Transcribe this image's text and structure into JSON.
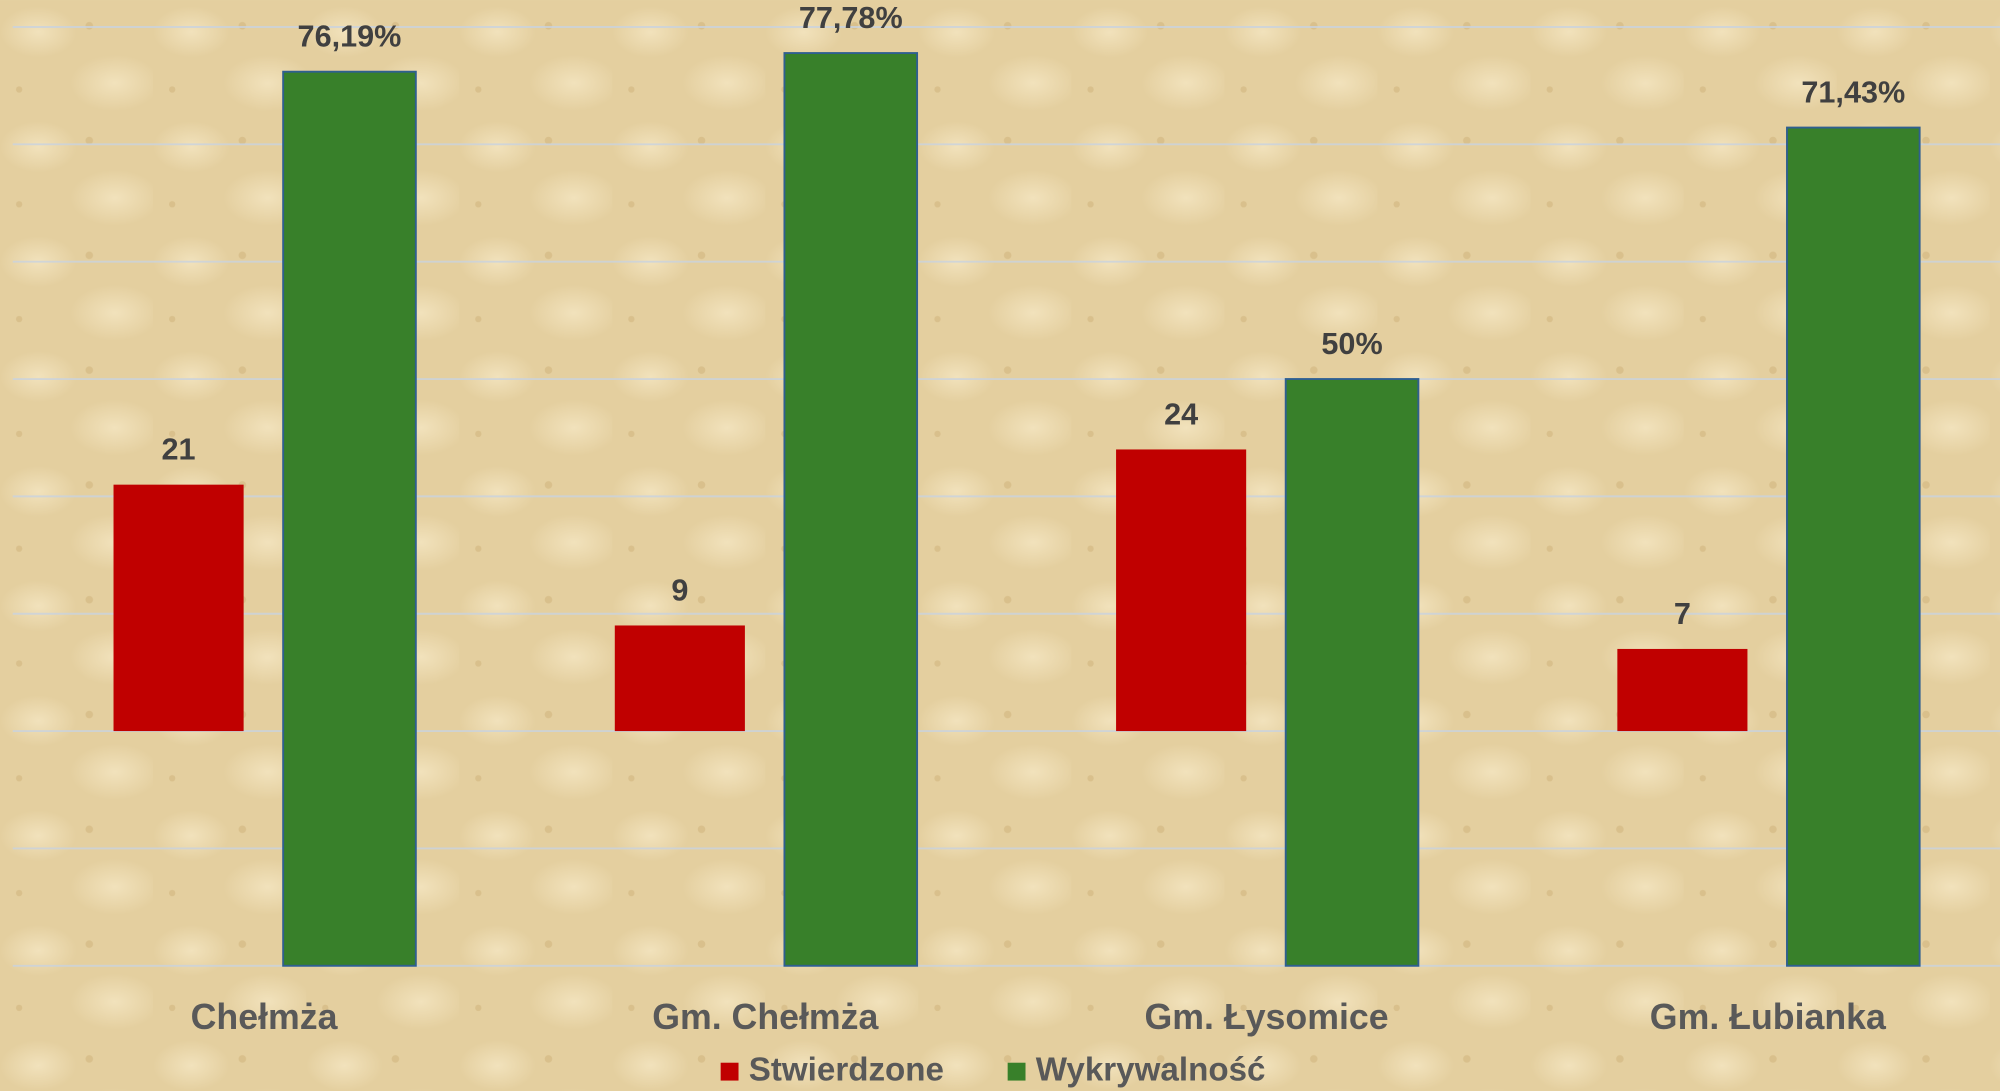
{
  "chart_data": {
    "type": "bar",
    "categories": [
      "Chełmża",
      "Gm. Chełmża",
      "Gm. Łysomice",
      "Gm. Łubianka"
    ],
    "series": [
      {
        "name": "Stwierdzone",
        "color": "#c00000",
        "axis": "y2",
        "values": [
          21,
          9,
          24,
          7
        ]
      },
      {
        "name": "Wykrywalność",
        "color": "#38802a",
        "values": [
          76.19,
          77.78,
          50,
          71.43
        ],
        "value_labels": [
          "76,19%",
          "77,78%",
          "50%",
          "71,43%"
        ]
      }
    ],
    "ylim": [
      0,
      80
    ],
    "yticks": [
      0,
      10,
      20,
      30,
      40,
      50,
      60,
      70,
      80
    ],
    "y2lim": [
      -20,
      60
    ],
    "grid": true,
    "legend": "bottom"
  }
}
